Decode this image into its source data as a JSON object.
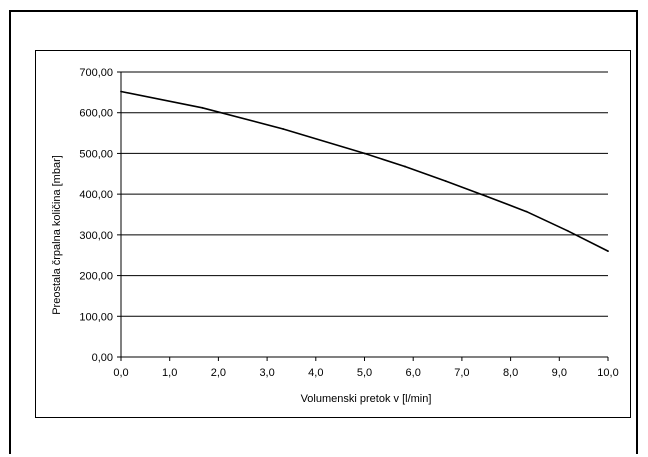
{
  "chart_data": {
    "type": "line",
    "xlabel": "Volumenski pretok v [l/min]",
    "ylabel": "Preostala črpalna količina [mbar]",
    "xlim": [
      0,
      10
    ],
    "ylim": [
      0,
      700
    ],
    "x_ticks": [
      "0,0",
      "1,0",
      "2,0",
      "3,0",
      "4,0",
      "5,0",
      "6,0",
      "7,0",
      "8,0",
      "9,0",
      "10,0"
    ],
    "y_ticks": [
      "0,00",
      "100,00",
      "200,00",
      "300,00",
      "400,00",
      "500,00",
      "600,00",
      "700,00"
    ],
    "grid": "horizontal",
    "series": [
      {
        "color": "#000000",
        "x": [
          0,
          1.67,
          3.33,
          5.0,
          5.83,
          6.67,
          7.5,
          8.33,
          9.17,
          10.0
        ],
        "y": [
          652,
          612,
          560,
          500,
          468,
          432,
          395,
          357,
          310,
          260
        ]
      }
    ]
  }
}
